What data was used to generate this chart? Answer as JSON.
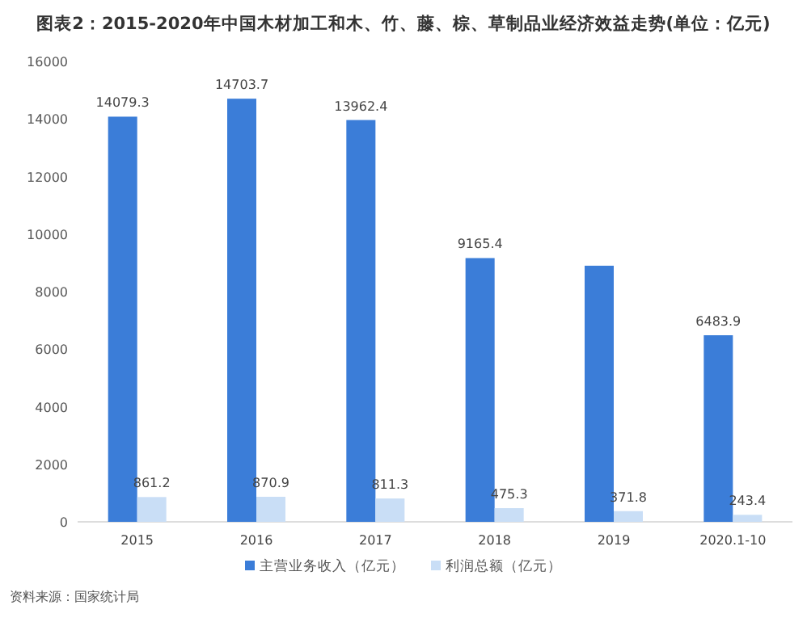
{
  "chart_data": {
    "type": "bar",
    "title": "图表2：2015-2020年中国木材加工和木、竹、藤、棕、草制品业经济效益走势(单位：亿元)",
    "categories": [
      "2015",
      "2016",
      "2017",
      "2018",
      "2019",
      "2020.1-10"
    ],
    "series": [
      {
        "name": "主营业务收入（亿元）",
        "color": "#3b7dd8",
        "values": [
          14079.3,
          14703.7,
          13962.4,
          9165.4,
          8900,
          6483.9
        ],
        "value_labels": [
          "14079.3",
          "14703.7",
          "13962.4",
          "9165.4",
          null,
          "6483.9"
        ]
      },
      {
        "name": "利润总额（亿元）",
        "color": "#c9def6",
        "values": [
          861.2,
          870.9,
          811.3,
          475.3,
          371.8,
          243.4
        ],
        "value_labels": [
          "861.2",
          "870.9",
          "811.3",
          "475.3",
          "371.8",
          "243.4"
        ]
      }
    ],
    "ylim": [
      0,
      16000
    ],
    "yticks": [
      0,
      2000,
      4000,
      6000,
      8000,
      10000,
      12000,
      14000,
      16000
    ],
    "grid": false,
    "legend": "bottom",
    "annotations": [
      "资料来源：国家统计局"
    ]
  }
}
